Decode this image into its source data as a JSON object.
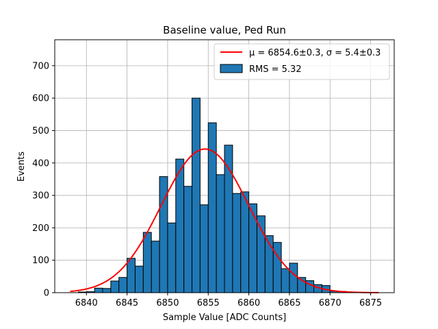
{
  "chart_data": {
    "type": "bar",
    "title": "Baseline value, Ped Run",
    "xlabel": "Sample Value [ADC Counts]",
    "ylabel": "Events",
    "xlim": [
      6836.1,
      6877.9
    ],
    "ylim": [
      0,
      780
    ],
    "x_ticks": [
      6840,
      6845,
      6850,
      6855,
      6860,
      6865,
      6870,
      6875
    ],
    "y_ticks": [
      0,
      100,
      200,
      300,
      400,
      500,
      600,
      700
    ],
    "grid": true,
    "legend_position": "top-right",
    "bar_color": "#1f77b4",
    "bar_edge_color": "#000000",
    "fit_color": "#ff0000",
    "bins": [
      {
        "x0": 6838.0,
        "x1": 6839.0,
        "count": 0
      },
      {
        "x0": 6839.0,
        "x1": 6840.0,
        "count": 2
      },
      {
        "x0": 6840.0,
        "x1": 6841.0,
        "count": 3
      },
      {
        "x0": 6841.0,
        "x1": 6842.0,
        "count": 14
      },
      {
        "x0": 6842.0,
        "x1": 6843.0,
        "count": 13
      },
      {
        "x0": 6843.0,
        "x1": 6844.0,
        "count": 36
      },
      {
        "x0": 6844.0,
        "x1": 6845.0,
        "count": 47
      },
      {
        "x0": 6845.0,
        "x1": 6846.0,
        "count": 106
      },
      {
        "x0": 6846.0,
        "x1": 6847.0,
        "count": 82
      },
      {
        "x0": 6847.0,
        "x1": 6848.0,
        "count": 186
      },
      {
        "x0": 6848.0,
        "x1": 6849.0,
        "count": 159
      },
      {
        "x0": 6849.0,
        "x1": 6850.0,
        "count": 358
      },
      {
        "x0": 6850.0,
        "x1": 6851.0,
        "count": 215
      },
      {
        "x0": 6851.0,
        "x1": 6852.0,
        "count": 412
      },
      {
        "x0": 6852.0,
        "x1": 6853.0,
        "count": 328
      },
      {
        "x0": 6853.0,
        "x1": 6854.0,
        "count": 600
      },
      {
        "x0": 6854.0,
        "x1": 6855.0,
        "count": 271
      },
      {
        "x0": 6855.0,
        "x1": 6856.0,
        "count": 524
      },
      {
        "x0": 6856.0,
        "x1": 6857.0,
        "count": 364
      },
      {
        "x0": 6857.0,
        "x1": 6858.0,
        "count": 455
      },
      {
        "x0": 6858.0,
        "x1": 6859.0,
        "count": 306
      },
      {
        "x0": 6859.0,
        "x1": 6860.0,
        "count": 311
      },
      {
        "x0": 6860.0,
        "x1": 6861.0,
        "count": 274
      },
      {
        "x0": 6861.0,
        "x1": 6862.0,
        "count": 237
      },
      {
        "x0": 6862.0,
        "x1": 6863.0,
        "count": 176
      },
      {
        "x0": 6863.0,
        "x1": 6864.0,
        "count": 155
      },
      {
        "x0": 6864.0,
        "x1": 6865.0,
        "count": 74
      },
      {
        "x0": 6865.0,
        "x1": 6866.0,
        "count": 91
      },
      {
        "x0": 6866.0,
        "x1": 6867.0,
        "count": 47
      },
      {
        "x0": 6867.0,
        "x1": 6868.0,
        "count": 37
      },
      {
        "x0": 6868.0,
        "x1": 6869.0,
        "count": 25
      },
      {
        "x0": 6869.0,
        "x1": 6870.0,
        "count": 22
      },
      {
        "x0": 6870.0,
        "x1": 6871.0,
        "count": 5
      },
      {
        "x0": 6871.0,
        "x1": 6872.0,
        "count": 4
      },
      {
        "x0": 6872.0,
        "x1": 6873.0,
        "count": 2
      },
      {
        "x0": 6873.0,
        "x1": 6874.0,
        "count": 1
      },
      {
        "x0": 6874.0,
        "x1": 6875.0,
        "count": 1
      },
      {
        "x0": 6875.0,
        "x1": 6876.0,
        "count": 0
      }
    ],
    "fit": {
      "type": "gaussian",
      "mu": 6854.6,
      "sigma": 5.4,
      "amplitude": 443,
      "x_range": [
        6838,
        6876
      ]
    },
    "legend": [
      {
        "kind": "line",
        "label": "μ = 6854.6±0.3, σ = 5.4±0.3"
      },
      {
        "kind": "patch",
        "label": "RMS = 5.32"
      }
    ]
  }
}
